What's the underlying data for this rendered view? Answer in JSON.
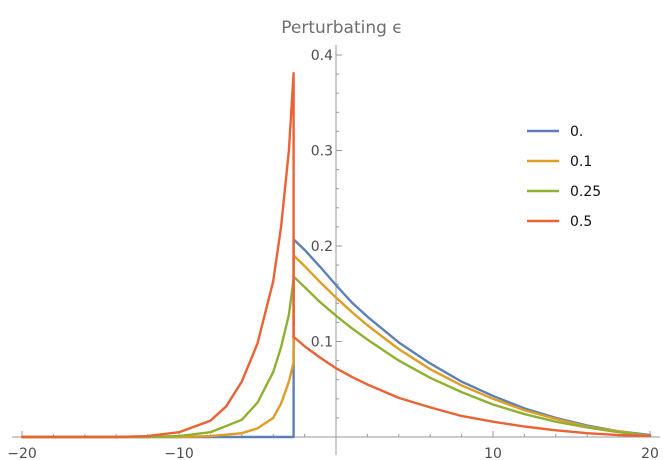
{
  "chart_data": {
    "type": "line",
    "title": "Perturbating ϵ",
    "xlabel": "",
    "ylabel": "",
    "xlim": [
      -20,
      20
    ],
    "ylim": [
      0,
      0.4
    ],
    "x_ticks": [
      -20,
      -10,
      10,
      20
    ],
    "x_tick_labels": [
      "−20",
      "−10",
      "10",
      "20"
    ],
    "y_ticks": [
      0.1,
      0.2,
      0.3,
      0.4
    ],
    "y_tick_labels": [
      "0.1",
      "0.2",
      "0.3",
      "0.4"
    ],
    "grid": false,
    "legend_position": "top-right",
    "series": [
      {
        "name": "0.",
        "color": "#5e81b5",
        "points": [
          [
            -20,
            0
          ],
          [
            -2.7,
            0
          ],
          [
            -2.7,
            0.207
          ],
          [
            -2,
            0.196
          ],
          [
            -1,
            0.178
          ],
          [
            0,
            0.159
          ],
          [
            1,
            0.141
          ],
          [
            2,
            0.126
          ],
          [
            4,
            0.099
          ],
          [
            6,
            0.077
          ],
          [
            8,
            0.058
          ],
          [
            10,
            0.043
          ],
          [
            12,
            0.03
          ],
          [
            14,
            0.02
          ],
          [
            16,
            0.012
          ],
          [
            18,
            0.006
          ],
          [
            20,
            0.002
          ]
        ]
      },
      {
        "name": "0.1",
        "color": "#e19c24",
        "points": [
          [
            -20,
            0
          ],
          [
            -10,
            0
          ],
          [
            -8,
            0.001
          ],
          [
            -6,
            0.004
          ],
          [
            -5,
            0.009
          ],
          [
            -4,
            0.02
          ],
          [
            -3.5,
            0.035
          ],
          [
            -3,
            0.058
          ],
          [
            -2.7,
            0.078
          ],
          [
            -2.7,
            0.19
          ],
          [
            -2,
            0.179
          ],
          [
            -1,
            0.162
          ],
          [
            0,
            0.146
          ],
          [
            1,
            0.131
          ],
          [
            2,
            0.117
          ],
          [
            4,
            0.092
          ],
          [
            6,
            0.071
          ],
          [
            8,
            0.054
          ],
          [
            10,
            0.04
          ],
          [
            12,
            0.028
          ],
          [
            14,
            0.019
          ],
          [
            16,
            0.011
          ],
          [
            18,
            0.006
          ],
          [
            20,
            0.001
          ]
        ]
      },
      {
        "name": "0.25",
        "color": "#8fb032",
        "points": [
          [
            -20,
            0
          ],
          [
            -12,
            0
          ],
          [
            -10,
            0.001
          ],
          [
            -8,
            0.005
          ],
          [
            -6,
            0.018
          ],
          [
            -5,
            0.036
          ],
          [
            -4,
            0.068
          ],
          [
            -3.5,
            0.094
          ],
          [
            -3,
            0.128
          ],
          [
            -2.7,
            0.165
          ],
          [
            -2.7,
            0.168
          ],
          [
            -2,
            0.157
          ],
          [
            -1,
            0.141
          ],
          [
            0,
            0.127
          ],
          [
            1,
            0.114
          ],
          [
            2,
            0.102
          ],
          [
            4,
            0.08
          ],
          [
            6,
            0.062
          ],
          [
            8,
            0.047
          ],
          [
            10,
            0.034
          ],
          [
            12,
            0.024
          ],
          [
            14,
            0.016
          ],
          [
            16,
            0.01
          ],
          [
            18,
            0.005
          ],
          [
            20,
            0.001
          ]
        ]
      },
      {
        "name": "0.5",
        "color": "#eb6235",
        "points": [
          [
            -20,
            0
          ],
          [
            -14,
            0
          ],
          [
            -12,
            0.001
          ],
          [
            -10,
            0.005
          ],
          [
            -8,
            0.017
          ],
          [
            -7,
            0.032
          ],
          [
            -6,
            0.058
          ],
          [
            -5,
            0.098
          ],
          [
            -4,
            0.163
          ],
          [
            -3.5,
            0.22
          ],
          [
            -3,
            0.3
          ],
          [
            -2.7,
            0.381
          ],
          [
            -2.7,
            0.105
          ],
          [
            -2,
            0.095
          ],
          [
            -1,
            0.083
          ],
          [
            0,
            0.072
          ],
          [
            1,
            0.063
          ],
          [
            2,
            0.055
          ],
          [
            4,
            0.041
          ],
          [
            6,
            0.031
          ],
          [
            8,
            0.022
          ],
          [
            10,
            0.016
          ],
          [
            12,
            0.011
          ],
          [
            14,
            0.007
          ],
          [
            16,
            0.004
          ],
          [
            18,
            0.002
          ],
          [
            20,
            0.001
          ]
        ]
      }
    ]
  }
}
